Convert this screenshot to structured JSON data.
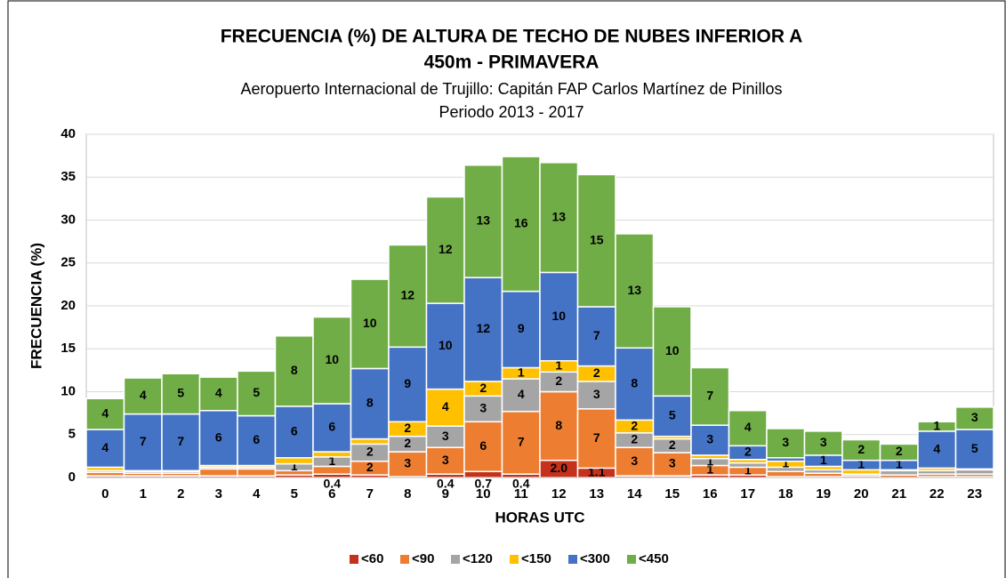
{
  "chart_data": {
    "type": "stacked_bar",
    "title": [
      "FRECUENCIA (%) DE ALTURA DE TECHO DE NUBES INFERIOR A",
      "450m - PRIMAVERA"
    ],
    "subtitle": [
      "Aeropuerto Internacional de Trujillo: Capitán FAP Carlos Martínez de Pinillos",
      "Periodo 2013 - 2017"
    ],
    "x_label": "HORAS UTC",
    "y_label": "FRECUENCIA (%)",
    "categories": [
      "0",
      "1",
      "2",
      "3",
      "4",
      "5",
      "6",
      "7",
      "8",
      "9",
      "10",
      "11",
      "12",
      "13",
      "14",
      "15",
      "16",
      "17",
      "18",
      "19",
      "20",
      "21",
      "22",
      "23"
    ],
    "ylim": [
      0,
      40
    ],
    "yticks": [
      0,
      5,
      10,
      15,
      20,
      25,
      30,
      35,
      40
    ],
    "grid": true,
    "legend": "bottom",
    "series": [
      {
        "name": "<60",
        "color": "#C5311A",
        "values": [
          0.2,
          0.2,
          0.2,
          0.2,
          0.2,
          0.3,
          0.4,
          0.3,
          0.1,
          0.4,
          0.7,
          0.4,
          2.0,
          1.1,
          0.2,
          0.2,
          0.3,
          0.3,
          0.1,
          0.1,
          0,
          0,
          0.1,
          0.1
        ],
        "value_labels": [
          null,
          null,
          null,
          null,
          null,
          null,
          "0.4",
          null,
          null,
          "0.4",
          "0.7",
          "0.4",
          "2.0",
          "1.1",
          null,
          null,
          null,
          null,
          null,
          null,
          null,
          null,
          null,
          null
        ]
      },
      {
        "name": "<90",
        "color": "#ED7D31",
        "values": [
          0.4,
          0.3,
          0.3,
          0.8,
          0.8,
          0.5,
          0.9,
          1.6,
          2.9,
          3.1,
          5.8,
          7.3,
          8.0,
          6.9,
          3.3,
          2.7,
          1.1,
          0.9,
          0.6,
          0.4,
          0.2,
          0.3,
          0.3,
          0.3
        ],
        "value_labels": [
          null,
          null,
          null,
          null,
          null,
          null,
          null,
          "2",
          "3",
          "3",
          "6",
          "7",
          "8",
          "7",
          "3",
          "3",
          "1",
          "1",
          null,
          null,
          null,
          null,
          null,
          null
        ]
      },
      {
        "name": "<120",
        "color": "#A5A5A5",
        "values": [
          0.2,
          0.2,
          0.2,
          0.2,
          0.2,
          0.8,
          1.1,
          2.0,
          1.8,
          2.5,
          3.0,
          3.8,
          2.3,
          3.2,
          1.7,
          1.6,
          0.8,
          0.5,
          0.5,
          0.4,
          0.2,
          0.5,
          0.4,
          0.5
        ],
        "value_labels": [
          null,
          null,
          null,
          null,
          null,
          "1",
          "1",
          "2",
          "2",
          "3",
          "3",
          "4",
          "2",
          "3",
          "2",
          "2",
          "1",
          null,
          null,
          null,
          null,
          null,
          null,
          null
        ]
      },
      {
        "name": "<150",
        "color": "#FFC000",
        "values": [
          0.4,
          0.1,
          0.1,
          0.2,
          0.2,
          0.7,
          0.6,
          0.6,
          1.7,
          4.3,
          1.7,
          1.3,
          1.3,
          1.8,
          1.5,
          0.3,
          0.4,
          0.4,
          0.7,
          0.4,
          0.5,
          0.1,
          0.3,
          0.1
        ],
        "value_labels": [
          null,
          null,
          null,
          null,
          null,
          null,
          null,
          null,
          "2",
          "4",
          "2",
          "1",
          "1",
          "2",
          "2",
          null,
          null,
          null,
          "1",
          null,
          null,
          null,
          null,
          null
        ]
      },
      {
        "name": "<300",
        "color": "#4472C4",
        "values": [
          4.4,
          6.6,
          6.6,
          6.4,
          5.8,
          6.0,
          5.6,
          8.2,
          8.7,
          10.0,
          12.1,
          8.9,
          10.3,
          6.9,
          8.4,
          4.7,
          3.5,
          1.6,
          0.4,
          1.3,
          1.1,
          1.1,
          4.3,
          4.6
        ],
        "value_labels": [
          "4",
          "7",
          "7",
          "6",
          "6",
          "6",
          "6",
          "8",
          "9",
          "10",
          "12",
          "9",
          "10",
          "7",
          "8",
          "5",
          "3",
          "2",
          null,
          "1",
          "1",
          "1",
          "4",
          "5"
        ]
      },
      {
        "name": "<450",
        "color": "#70AD47",
        "values": [
          3.6,
          4.2,
          4.7,
          3.9,
          5.2,
          8.2,
          10.1,
          10.4,
          11.9,
          12.4,
          13.1,
          15.7,
          12.8,
          15.4,
          13.3,
          10.4,
          6.7,
          4.1,
          3.4,
          2.8,
          2.4,
          1.9,
          1.1,
          2.6
        ],
        "value_labels": [
          "4",
          "4",
          "5",
          "4",
          "5",
          "8",
          "10",
          "10",
          "12",
          "12",
          "13",
          "16",
          "13",
          "15",
          "13",
          "10",
          "7",
          "4",
          "3",
          "3",
          "2",
          "2",
          "1",
          "3"
        ]
      }
    ]
  }
}
